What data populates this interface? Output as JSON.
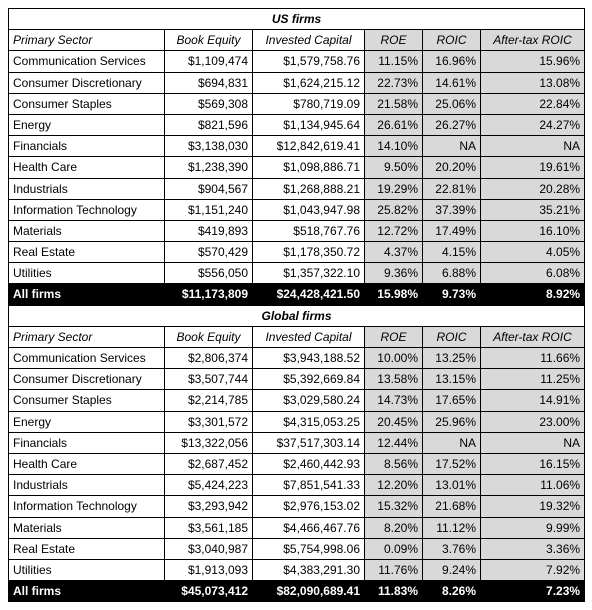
{
  "section_titles": [
    "US firms",
    "Global firms"
  ],
  "columns": [
    "Primary Sector",
    "Book Equity",
    "Invested Capital",
    "ROE",
    "ROIC",
    "After-tax ROIC"
  ],
  "grey_cols": [
    false,
    false,
    false,
    true,
    true,
    true
  ],
  "align": [
    "sector",
    "num",
    "num",
    "num",
    "num",
    "num"
  ],
  "sections": [
    {
      "rows": [
        [
          "Communication Services",
          "$1,109,474",
          "$1,579,758.76",
          "11.15%",
          "16.96%",
          "15.96%"
        ],
        [
          "Consumer Discretionary",
          "$694,831",
          "$1,624,215.12",
          "22.73%",
          "14.61%",
          "13.08%"
        ],
        [
          "Consumer Staples",
          "$569,308",
          "$780,719.09",
          "21.58%",
          "25.06%",
          "22.84%"
        ],
        [
          "Energy",
          "$821,596",
          "$1,134,945.64",
          "26.61%",
          "26.27%",
          "24.27%"
        ],
        [
          "Financials",
          "$3,138,030",
          "$12,842,619.41",
          "14.10%",
          "NA",
          "NA"
        ],
        [
          "Health Care",
          "$1,238,390",
          "$1,098,886.71",
          "9.50%",
          "20.20%",
          "19.61%"
        ],
        [
          "Industrials",
          "$904,567",
          "$1,268,888.21",
          "19.29%",
          "22.81%",
          "20.28%"
        ],
        [
          "Information Technology",
          "$1,151,240",
          "$1,043,947.98",
          "25.82%",
          "37.39%",
          "35.21%"
        ],
        [
          "Materials",
          "$419,893",
          "$518,767.76",
          "12.72%",
          "17.49%",
          "16.10%"
        ],
        [
          "Real Estate",
          "$570,429",
          "$1,178,350.72",
          "4.37%",
          "4.15%",
          "4.05%"
        ],
        [
          "Utilities",
          "$556,050",
          "$1,357,322.10",
          "9.36%",
          "6.88%",
          "6.08%"
        ]
      ],
      "totals": [
        "All firms",
        "$11,173,809",
        "$24,428,421.50",
        "15.98%",
        "9.73%",
        "8.92%"
      ]
    },
    {
      "rows": [
        [
          "Communication Services",
          "$2,806,374",
          "$3,943,188.52",
          "10.00%",
          "13.25%",
          "11.66%"
        ],
        [
          "Consumer Discretionary",
          "$3,507,744",
          "$5,392,669.84",
          "13.58%",
          "13.15%",
          "11.25%"
        ],
        [
          "Consumer Staples",
          "$2,214,785",
          "$3,029,580.24",
          "14.73%",
          "17.65%",
          "14.91%"
        ],
        [
          "Energy",
          "$3,301,572",
          "$4,315,053.25",
          "20.45%",
          "25.96%",
          "23.00%"
        ],
        [
          "Financials",
          "$13,322,056",
          "$37,517,303.14",
          "12.44%",
          "NA",
          "NA"
        ],
        [
          "Health Care",
          "$2,687,452",
          "$2,460,442.93",
          "8.56%",
          "17.52%",
          "16.15%"
        ],
        [
          "Industrials",
          "$5,424,223",
          "$7,851,541.33",
          "12.20%",
          "13.01%",
          "11.06%"
        ],
        [
          "Information Technology",
          "$3,293,942",
          "$2,976,153.02",
          "15.32%",
          "21.68%",
          "19.32%"
        ],
        [
          "Materials",
          "$3,561,185",
          "$4,466,467.76",
          "8.20%",
          "11.12%",
          "9.99%"
        ],
        [
          "Real Estate",
          "$3,040,987",
          "$5,754,998.06",
          "0.09%",
          "3.76%",
          "3.36%"
        ],
        [
          "Utilities",
          "$1,913,093",
          "$4,383,291.30",
          "11.76%",
          "9.24%",
          "7.92%"
        ]
      ],
      "totals": [
        "All firms",
        "$45,073,412",
        "$82,090,689.41",
        "11.83%",
        "8.26%",
        "7.23%"
      ]
    }
  ]
}
